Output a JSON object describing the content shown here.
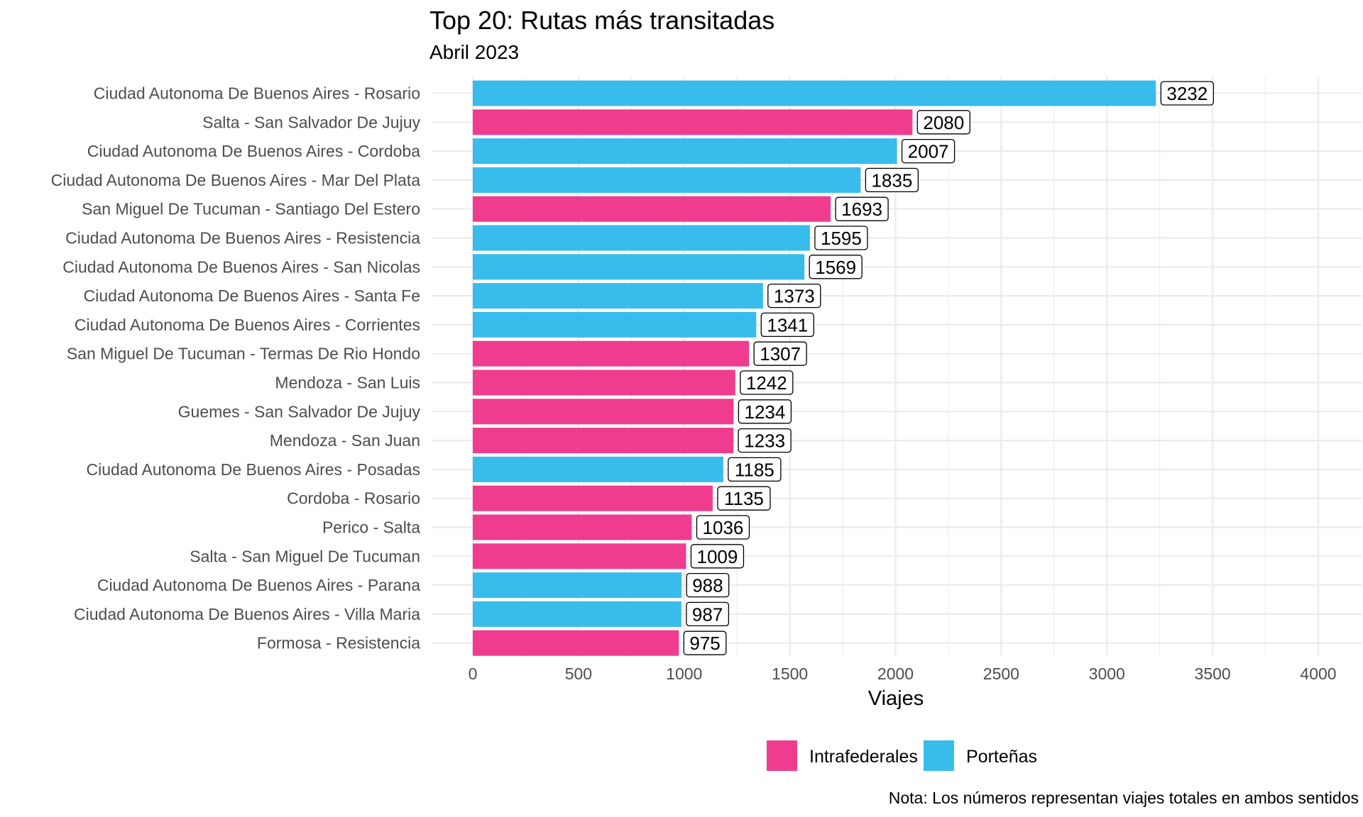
{
  "chart_data": {
    "type": "bar",
    "orientation": "horizontal",
    "title": "Top 20: Rutas más transitadas",
    "subtitle": "Abril 2023",
    "xlabel": "Viajes",
    "ylabel": "",
    "caption": "Nota: Los números representan viajes totales en ambos sentidos",
    "xlim": [
      0,
      4000
    ],
    "xticks": [
      0,
      500,
      1000,
      1500,
      2000,
      2500,
      3000,
      3500,
      4000
    ],
    "grid": true,
    "legend_position": "bottom",
    "legend": [
      {
        "name": "Intrafederales",
        "color": "#ef3c8f"
      },
      {
        "name": "Porteñas",
        "color": "#38bcec"
      }
    ],
    "categories": [
      "Ciudad Autonoma De Buenos Aires - Rosario",
      "Salta - San Salvador De Jujuy",
      "Ciudad Autonoma De Buenos Aires - Cordoba",
      "Ciudad Autonoma De Buenos Aires - Mar Del Plata",
      "San Miguel De Tucuman - Santiago Del Estero",
      "Ciudad Autonoma De Buenos Aires - Resistencia",
      "Ciudad Autonoma De Buenos Aires - San Nicolas",
      "Ciudad Autonoma De Buenos Aires - Santa Fe",
      "Ciudad Autonoma De Buenos Aires - Corrientes",
      "San Miguel De Tucuman - Termas De Rio Hondo",
      "Mendoza - San Luis",
      "Guemes - San Salvador De Jujuy",
      "Mendoza - San Juan",
      "Ciudad Autonoma De Buenos Aires - Posadas",
      "Cordoba - Rosario",
      "Perico - Salta",
      "Salta - San Miguel De Tucuman",
      "Ciudad Autonoma De Buenos Aires - Parana",
      "Ciudad Autonoma De Buenos Aires - Villa Maria",
      "Formosa - Resistencia"
    ],
    "values": [
      3232,
      2080,
      2007,
      1835,
      1693,
      1595,
      1569,
      1373,
      1341,
      1307,
      1242,
      1234,
      1233,
      1185,
      1135,
      1036,
      1009,
      988,
      987,
      975
    ],
    "groups": [
      "Porteñas",
      "Intrafederales",
      "Porteñas",
      "Porteñas",
      "Intrafederales",
      "Porteñas",
      "Porteñas",
      "Porteñas",
      "Porteñas",
      "Intrafederales",
      "Intrafederales",
      "Intrafederales",
      "Intrafederales",
      "Porteñas",
      "Intrafederales",
      "Intrafederales",
      "Intrafederales",
      "Porteñas",
      "Porteñas",
      "Intrafederales"
    ]
  }
}
